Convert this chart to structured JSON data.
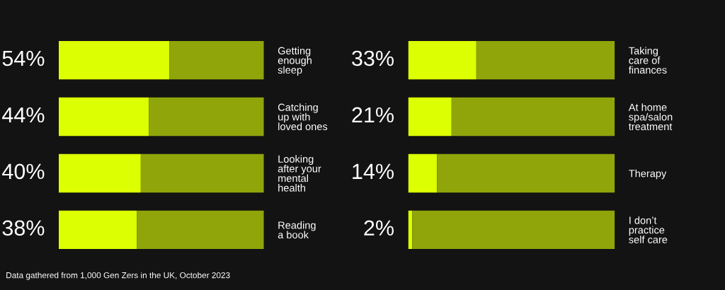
{
  "chart_data": [
    {
      "type": "bar",
      "orientation": "horizontal",
      "stacked": true,
      "categories": [
        "Getting\nenough\nsleep",
        "Catching\nup with\nloved ones",
        "Looking\nafter your\nmental\nhealth",
        "Reading\na book"
      ],
      "xlim": [
        0,
        100
      ],
      "tick_labels": "y",
      "grid": false,
      "legend": false,
      "series": [
        {
          "color": "#dcff02",
          "values": [
            54,
            44,
            40,
            38
          ],
          "value_labels": [
            "54%",
            "44%",
            "40%",
            "38%"
          ]
        },
        {
          "color": "#8fa50a",
          "values": [
            46,
            56,
            60,
            62
          ]
        }
      ]
    },
    {
      "type": "bar",
      "orientation": "horizontal",
      "stacked": true,
      "categories": [
        "Taking\ncare of\nfinances",
        "At home\nspa/salon\ntreatment",
        "Therapy",
        "I don’t\npractice\nself care"
      ],
      "xlim": [
        0,
        100
      ],
      "tick_labels": "y",
      "grid": false,
      "legend": false,
      "annotations": [
        "Data gathered from 1,000 Gen Zers in the UK, October 2023"
      ],
      "series": [
        {
          "color": "#dcff02",
          "values": [
            33,
            21,
            14,
            2
          ],
          "value_labels": [
            "33%",
            "21%",
            "14%",
            "2%"
          ]
        },
        {
          "color": "#8fa50a",
          "values": [
            67,
            79,
            86,
            98
          ]
        }
      ]
    }
  ]
}
